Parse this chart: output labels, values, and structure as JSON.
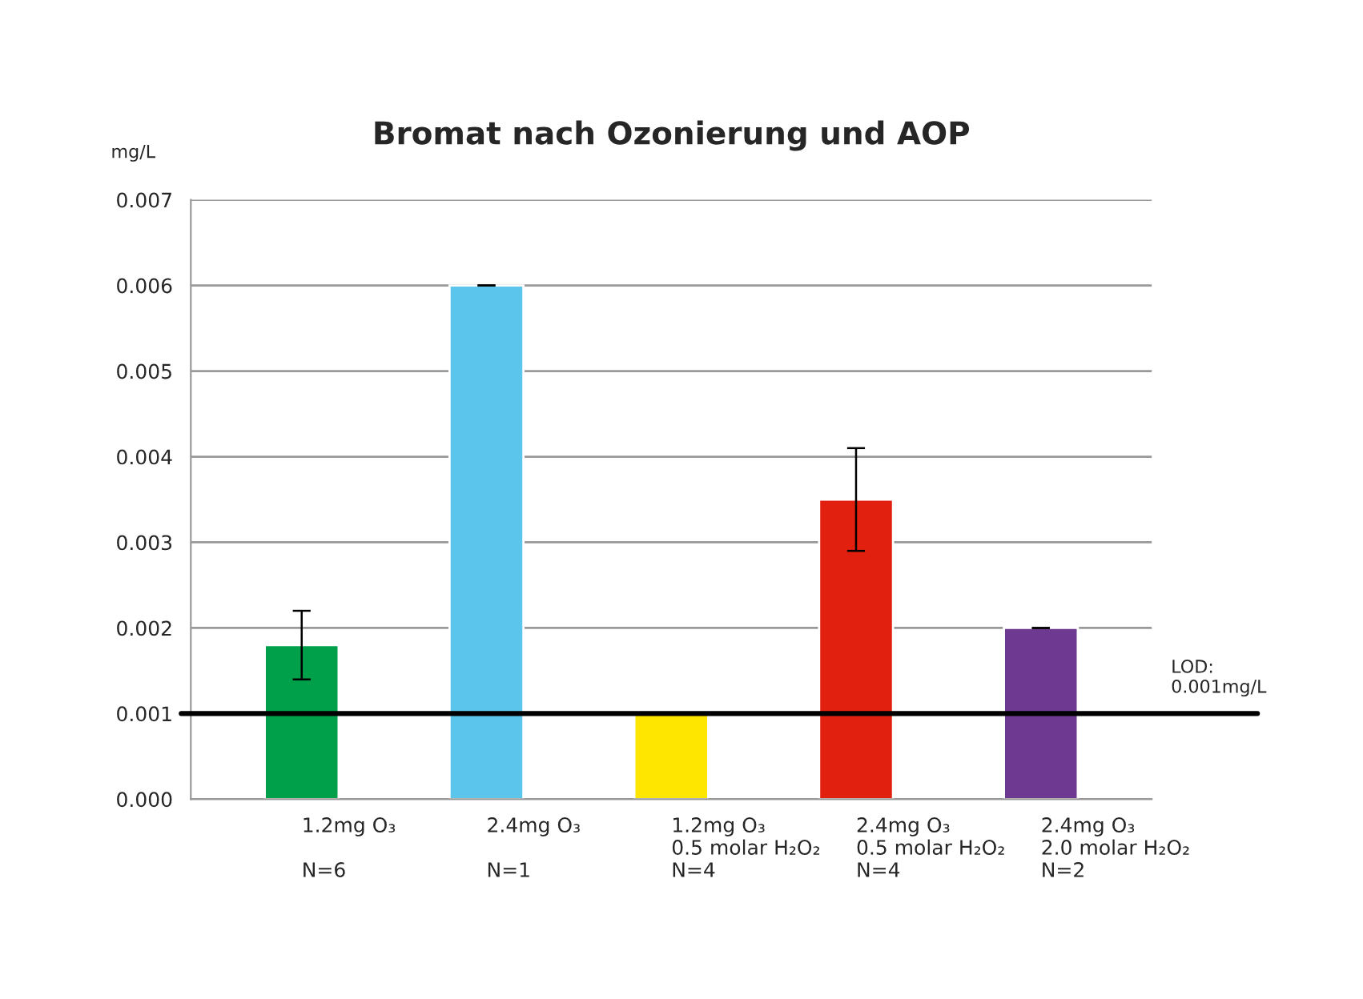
{
  "chart_data": {
    "type": "bar",
    "title": "Bromat nach Ozonierung und AOP",
    "ylabel": "mg/L",
    "categories": [
      "1.2mg O₃\n\nN=6",
      "2.4mg O₃\n\nN=1",
      "1.2mg O₃\n0.5 molar H₂O₂\nN=4",
      "2.4mg O₃\n0.5 molar H₂O₂\nN=4",
      "2.4mg O₃\n2.0 molar H₂O₂\nN=2"
    ],
    "values": [
      0.0018,
      0.006,
      0.001,
      0.0035,
      0.002
    ],
    "errors": [
      0.0004,
      0,
      null,
      0.0006,
      0
    ],
    "colors": [
      "#00a04a",
      "#5bc5ec",
      "#ffe600",
      "#e2200f",
      "#6e3a91"
    ],
    "ylim": [
      0,
      0.007
    ],
    "yticks": [
      {
        "value": 0,
        "label": "0.000"
      },
      {
        "value": 0.001,
        "label": "0.001"
      },
      {
        "value": 0.002,
        "label": "0.002"
      },
      {
        "value": 0.003,
        "label": "0.003"
      },
      {
        "value": 0.004,
        "label": "0.004"
      },
      {
        "value": 0.005,
        "label": "0.005"
      },
      {
        "value": 0.006,
        "label": "0.006"
      },
      {
        "value": 0.007,
        "label": "0.007"
      }
    ],
    "ref_lines": [
      {
        "axis": "y",
        "value": 0.001,
        "label": "LOD:\n0.001mg/L",
        "color": "#000000"
      }
    ],
    "grid": "y"
  }
}
